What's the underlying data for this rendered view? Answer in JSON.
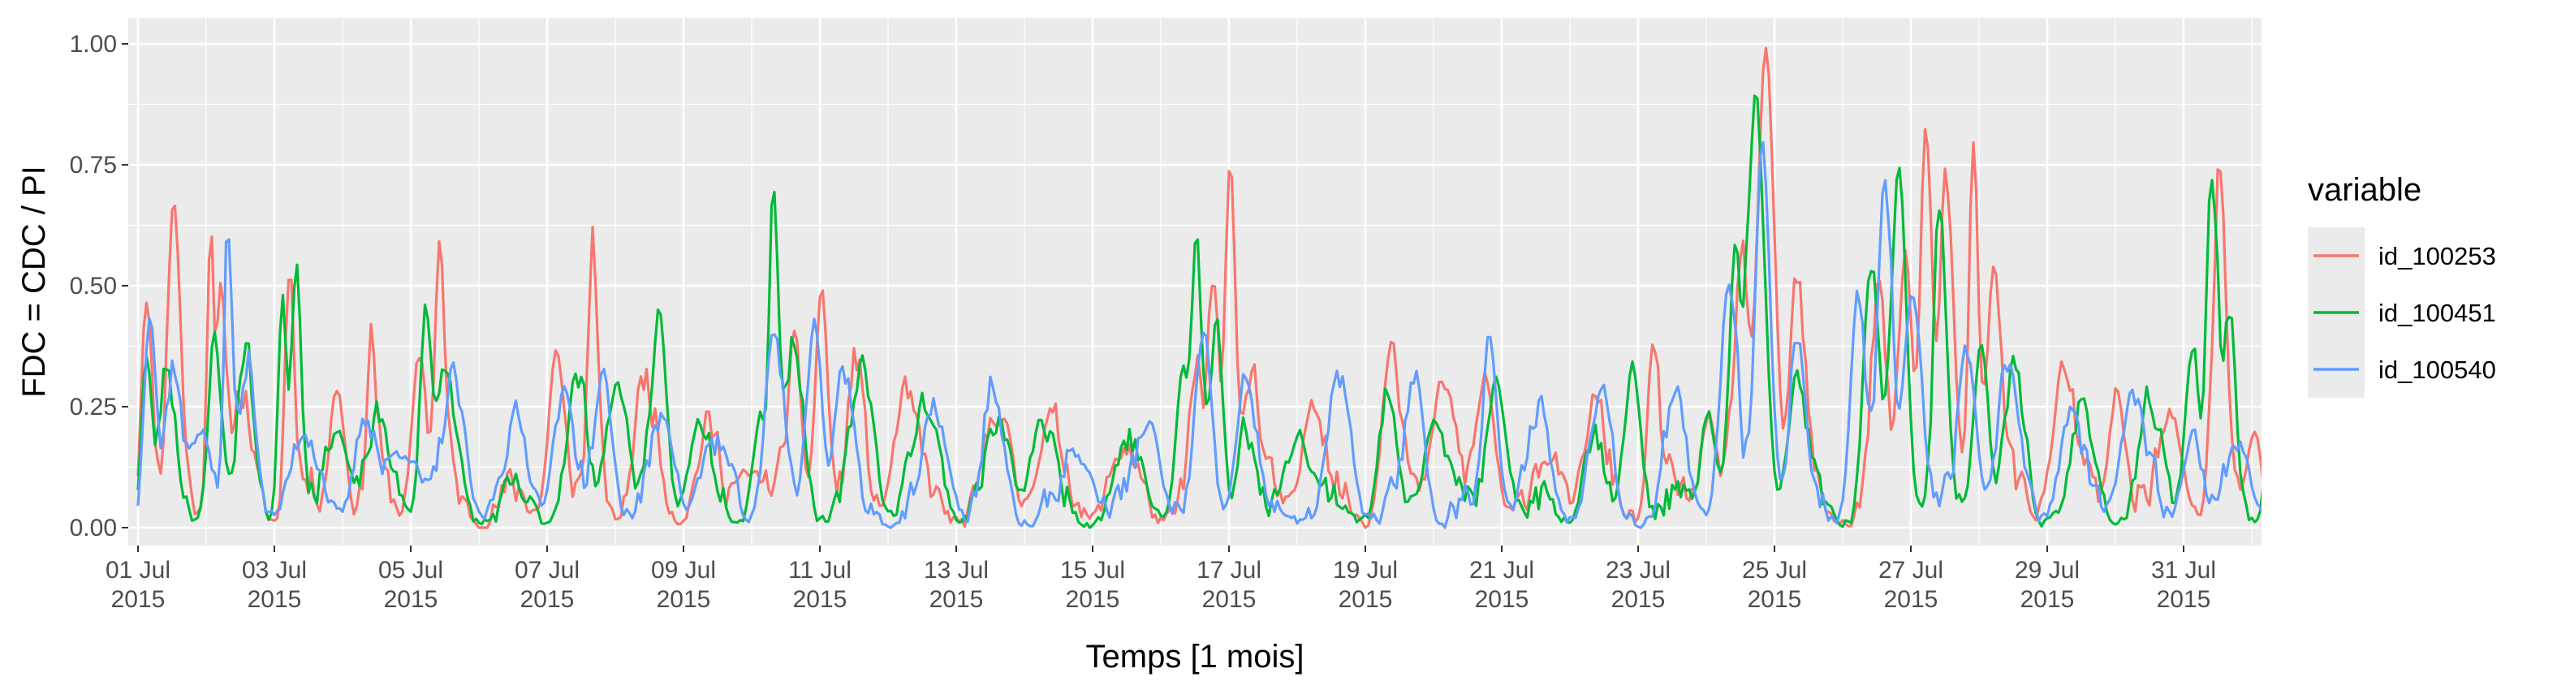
{
  "chart_data": {
    "type": "line",
    "title": "",
    "xlabel": "Temps [1 mois]",
    "ylabel": "FDC = CDC / PI",
    "ylim": [
      0,
      1
    ],
    "xlim_days": [
      0,
      31.5
    ],
    "samples_per_day": 24,
    "y_ticks": [
      {
        "value": 0.0,
        "label": "0.00"
      },
      {
        "value": 0.25,
        "label": "0.25"
      },
      {
        "value": 0.5,
        "label": "0.50"
      },
      {
        "value": 0.75,
        "label": "0.75"
      },
      {
        "value": 1.0,
        "label": "1.00"
      }
    ],
    "x_ticks": [
      {
        "day": 0,
        "line1": "01 Jul",
        "line2": "2015"
      },
      {
        "day": 2,
        "line1": "03 Jul",
        "line2": "2015"
      },
      {
        "day": 4,
        "line1": "05 Jul",
        "line2": "2015"
      },
      {
        "day": 6,
        "line1": "07 Jul",
        "line2": "2015"
      },
      {
        "day": 8,
        "line1": "09 Jul",
        "line2": "2015"
      },
      {
        "day": 10,
        "line1": "11 Jul",
        "line2": "2015"
      },
      {
        "day": 12,
        "line1": "13 Jul",
        "line2": "2015"
      },
      {
        "day": 14,
        "line1": "15 Jul",
        "line2": "2015"
      },
      {
        "day": 16,
        "line1": "17 Jul",
        "line2": "2015"
      },
      {
        "day": 18,
        "line1": "19 Jul",
        "line2": "2015"
      },
      {
        "day": 20,
        "line1": "21 Jul",
        "line2": "2015"
      },
      {
        "day": 22,
        "line1": "23 Jul",
        "line2": "2015"
      },
      {
        "day": 24,
        "line1": "25 Jul",
        "line2": "2015"
      },
      {
        "day": 26,
        "line1": "27 Jul",
        "line2": "2015"
      },
      {
        "day": 28,
        "line1": "29 Jul",
        "line2": "2015"
      },
      {
        "day": 30,
        "line1": "31 Jul",
        "line2": "2015"
      }
    ],
    "legend": {
      "title": "variable",
      "position": "right"
    },
    "series": [
      {
        "name": "id_100253",
        "color": "#F8766D",
        "baseline": 0.06,
        "noise": 0.06,
        "seed": 11,
        "peaks": [
          [
            0.1,
            0.55,
            0.07
          ],
          [
            0.5,
            0.7,
            0.08
          ],
          [
            1.05,
            0.78,
            0.05
          ],
          [
            1.2,
            0.5,
            0.06
          ],
          [
            1.5,
            0.22,
            0.12
          ],
          [
            2.2,
            0.62,
            0.06
          ],
          [
            2.9,
            0.3,
            0.1
          ],
          [
            3.4,
            0.4,
            0.06
          ],
          [
            4.1,
            0.37,
            0.1
          ],
          [
            4.4,
            0.63,
            0.06
          ],
          [
            6.1,
            0.38,
            0.1
          ],
          [
            6.65,
            0.65,
            0.06
          ],
          [
            7.4,
            0.25,
            0.15
          ],
          [
            8.3,
            0.15,
            0.15
          ],
          [
            9.0,
            0.1,
            0.2
          ],
          [
            9.6,
            0.3,
            0.1
          ],
          [
            10.0,
            0.55,
            0.08
          ],
          [
            10.5,
            0.3,
            0.1
          ],
          [
            11.2,
            0.25,
            0.15
          ],
          [
            12.6,
            0.2,
            0.15
          ],
          [
            13.3,
            0.15,
            0.2
          ],
          [
            14.4,
            0.1,
            0.2
          ],
          [
            15.5,
            0.25,
            0.1
          ],
          [
            15.75,
            0.52,
            0.08
          ],
          [
            16.0,
            0.85,
            0.07
          ],
          [
            16.3,
            0.3,
            0.1
          ],
          [
            17.2,
            0.25,
            0.15
          ],
          [
            18.35,
            0.38,
            0.12
          ],
          [
            19.1,
            0.3,
            0.15
          ],
          [
            19.75,
            0.28,
            0.12
          ],
          [
            20.7,
            0.1,
            0.2
          ],
          [
            21.3,
            0.2,
            0.15
          ],
          [
            22.2,
            0.38,
            0.08
          ],
          [
            23.0,
            0.25,
            0.1
          ],
          [
            23.5,
            0.5,
            0.12
          ],
          [
            23.85,
            1.0,
            0.12
          ],
          [
            24.3,
            0.5,
            0.1
          ],
          [
            25.5,
            0.45,
            0.1
          ],
          [
            25.9,
            0.6,
            0.1
          ],
          [
            26.2,
            0.9,
            0.08
          ],
          [
            26.5,
            0.72,
            0.08
          ],
          [
            26.9,
            0.95,
            0.06
          ],
          [
            27.2,
            0.55,
            0.1
          ],
          [
            28.2,
            0.3,
            0.15
          ],
          [
            29.0,
            0.3,
            0.1
          ],
          [
            29.8,
            0.2,
            0.15
          ],
          [
            30.5,
            0.75,
            0.08
          ],
          [
            31.0,
            0.2,
            0.1
          ]
        ]
      },
      {
        "name": "id_100451",
        "color": "#00BA38",
        "baseline": 0.05,
        "noise": 0.05,
        "seed": 23,
        "peaks": [
          [
            0.1,
            0.4,
            0.07
          ],
          [
            0.4,
            0.3,
            0.1
          ],
          [
            1.1,
            0.45,
            0.08
          ],
          [
            1.55,
            0.35,
            0.1
          ],
          [
            2.1,
            0.55,
            0.06
          ],
          [
            2.3,
            0.6,
            0.06
          ],
          [
            2.9,
            0.2,
            0.15
          ],
          [
            3.5,
            0.15,
            0.2
          ],
          [
            4.2,
            0.5,
            0.08
          ],
          [
            4.5,
            0.3,
            0.12
          ],
          [
            6.4,
            0.25,
            0.15
          ],
          [
            7.0,
            0.3,
            0.15
          ],
          [
            7.6,
            0.4,
            0.1
          ],
          [
            8.2,
            0.2,
            0.15
          ],
          [
            9.1,
            0.25,
            0.1
          ],
          [
            9.3,
            0.8,
            0.06
          ],
          [
            9.6,
            0.35,
            0.12
          ],
          [
            10.6,
            0.3,
            0.15
          ],
          [
            11.5,
            0.2,
            0.2
          ],
          [
            12.6,
            0.15,
            0.2
          ],
          [
            13.2,
            0.2,
            0.15
          ],
          [
            14.5,
            0.12,
            0.2
          ],
          [
            15.3,
            0.3,
            0.1
          ],
          [
            15.5,
            0.6,
            0.07
          ],
          [
            15.8,
            0.45,
            0.08
          ],
          [
            16.2,
            0.2,
            0.1
          ],
          [
            17.0,
            0.2,
            0.15
          ],
          [
            18.3,
            0.25,
            0.12
          ],
          [
            19.0,
            0.22,
            0.15
          ],
          [
            19.9,
            0.3,
            0.12
          ],
          [
            21.3,
            0.15,
            0.15
          ],
          [
            21.9,
            0.35,
            0.1
          ],
          [
            23.0,
            0.25,
            0.1
          ],
          [
            23.4,
            0.6,
            0.08
          ],
          [
            23.7,
            0.9,
            0.12
          ],
          [
            24.3,
            0.3,
            0.12
          ],
          [
            25.4,
            0.55,
            0.1
          ],
          [
            25.8,
            0.8,
            0.1
          ],
          [
            26.4,
            0.7,
            0.08
          ],
          [
            27.0,
            0.4,
            0.1
          ],
          [
            27.5,
            0.3,
            0.12
          ],
          [
            28.5,
            0.2,
            0.15
          ],
          [
            29.5,
            0.2,
            0.15
          ],
          [
            30.1,
            0.4,
            0.1
          ],
          [
            30.4,
            0.75,
            0.08
          ],
          [
            30.65,
            0.45,
            0.08
          ],
          [
            31.3,
            0.2,
            0.1
          ]
        ]
      },
      {
        "name": "id_100540",
        "color": "#619CFF",
        "baseline": 0.05,
        "noise": 0.05,
        "seed": 37,
        "peaks": [
          [
            0.15,
            0.5,
            0.08
          ],
          [
            0.5,
            0.3,
            0.1
          ],
          [
            0.9,
            0.2,
            0.15
          ],
          [
            1.3,
            0.75,
            0.05
          ],
          [
            1.6,
            0.3,
            0.1
          ],
          [
            2.4,
            0.15,
            0.2
          ],
          [
            3.3,
            0.2,
            0.15
          ],
          [
            3.9,
            0.15,
            0.2
          ],
          [
            4.6,
            0.25,
            0.15
          ],
          [
            5.5,
            0.15,
            0.2
          ],
          [
            6.2,
            0.25,
            0.15
          ],
          [
            6.8,
            0.3,
            0.12
          ],
          [
            7.7,
            0.2,
            0.15
          ],
          [
            8.4,
            0.12,
            0.2
          ],
          [
            9.3,
            0.4,
            0.12
          ],
          [
            9.9,
            0.45,
            0.1
          ],
          [
            10.3,
            0.3,
            0.12
          ],
          [
            11.7,
            0.2,
            0.15
          ],
          [
            12.5,
            0.25,
            0.12
          ],
          [
            13.8,
            0.12,
            0.2
          ],
          [
            14.8,
            0.2,
            0.15
          ],
          [
            15.6,
            0.35,
            0.1
          ],
          [
            16.2,
            0.3,
            0.12
          ],
          [
            17.6,
            0.25,
            0.15
          ],
          [
            18.7,
            0.3,
            0.12
          ],
          [
            19.8,
            0.4,
            0.1
          ],
          [
            20.5,
            0.2,
            0.15
          ],
          [
            21.4,
            0.25,
            0.15
          ],
          [
            22.5,
            0.2,
            0.15
          ],
          [
            23.3,
            0.5,
            0.12
          ],
          [
            23.8,
            0.85,
            0.1
          ],
          [
            24.3,
            0.4,
            0.1
          ],
          [
            25.2,
            0.5,
            0.1
          ],
          [
            25.6,
            0.7,
            0.1
          ],
          [
            26.0,
            0.5,
            0.12
          ],
          [
            26.8,
            0.35,
            0.12
          ],
          [
            27.4,
            0.3,
            0.15
          ],
          [
            28.3,
            0.2,
            0.15
          ],
          [
            29.2,
            0.25,
            0.15
          ],
          [
            30.1,
            0.2,
            0.12
          ],
          [
            30.8,
            0.15,
            0.15
          ],
          [
            31.4,
            0.12,
            0.1
          ]
        ]
      }
    ]
  }
}
